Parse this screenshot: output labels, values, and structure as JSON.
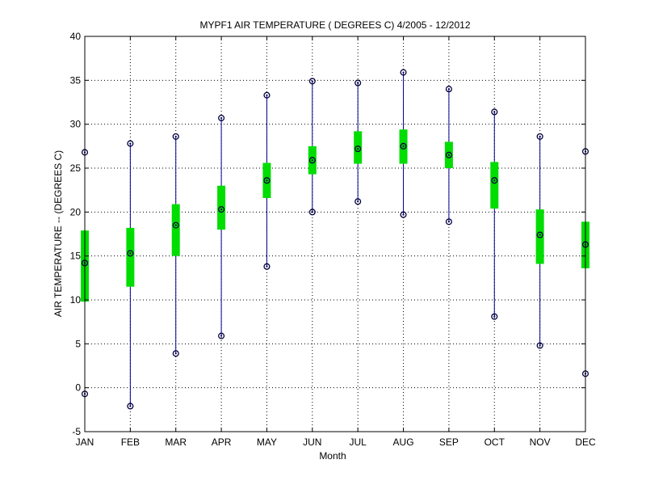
{
  "chart_data": {
    "type": "boxplot",
    "title": "MYPF1  AIR TEMPERATURE ( DEGREES C) 4/2005 - 12/2012",
    "xlabel": "Month",
    "ylabel": "AIR TEMPERATURE -- (DEGREES C)",
    "ylim": [
      -5,
      40
    ],
    "yticks": [
      -5,
      0,
      5,
      10,
      15,
      20,
      25,
      30,
      35,
      40
    ],
    "grid": true,
    "categories": [
      "JAN",
      "FEB",
      "MAR",
      "APR",
      "MAY",
      "JUN",
      "JUL",
      "AUG",
      "SEP",
      "OCT",
      "NOV",
      "DEC"
    ],
    "min": [
      -0.7,
      -2.1,
      3.9,
      5.9,
      13.8,
      20.0,
      21.2,
      19.7,
      18.9,
      8.1,
      4.8,
      1.6
    ],
    "q1": [
      9.8,
      11.5,
      15.0,
      18.0,
      21.6,
      24.3,
      25.5,
      25.5,
      25.0,
      20.4,
      14.1,
      13.6
    ],
    "median": [
      14.2,
      15.3,
      18.5,
      20.3,
      23.6,
      25.9,
      27.2,
      27.5,
      26.5,
      23.6,
      17.4,
      16.3
    ],
    "q3": [
      17.9,
      18.2,
      20.9,
      23.0,
      25.6,
      27.5,
      29.2,
      29.4,
      28.0,
      25.7,
      20.3,
      18.9
    ],
    "max": [
      26.8,
      27.8,
      28.6,
      30.7,
      33.3,
      34.9,
      34.7,
      35.9,
      34.0,
      31.4,
      28.6,
      26.9
    ],
    "colors": {
      "whisker": "#00008b",
      "box": "#00dd00",
      "marker": "#000040",
      "grid": "#000000"
    }
  }
}
